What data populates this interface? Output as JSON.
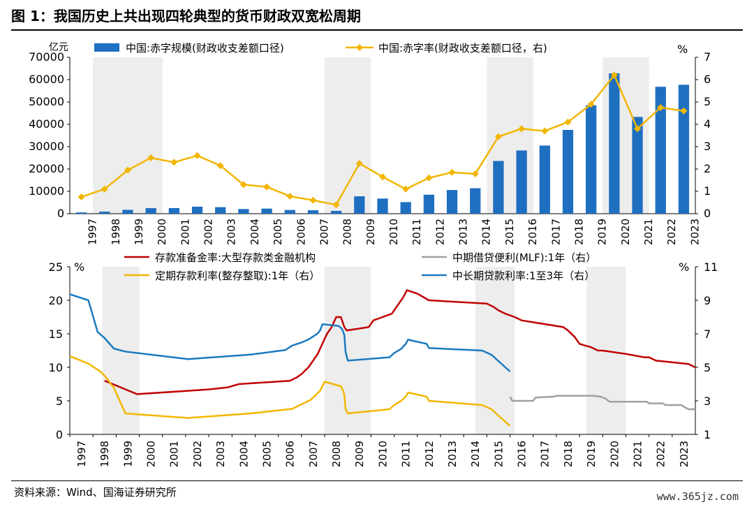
{
  "header": {
    "title": "图 1：我国历史上共出现四轮典型的货币财政双宽松周期"
  },
  "footer": {
    "source": "资料来源：Wind、国海证券研究所",
    "watermark": "www.365jz.com"
  },
  "colors": {
    "bar": "#1f6fc1",
    "deficit_rate": "#f2b600",
    "rrr": "#c00000",
    "mlf": "#a0a0a0",
    "deposit": "#f2b600",
    "loan": "#1a7abf",
    "shade": "#ededed"
  },
  "chart_data": [
    {
      "type": "bar",
      "title": "",
      "ylabel_left": "亿元",
      "ylabel_right": "%",
      "ylim": [
        0,
        70000
      ],
      "ylim_right": [
        0,
        7
      ],
      "yticks_left": [
        "0",
        "10000",
        "20000",
        "30000",
        "40000",
        "50000",
        "60000",
        "70000"
      ],
      "yticks_right": [
        "0",
        "1",
        "2",
        "3",
        "4",
        "5",
        "6",
        "7"
      ],
      "categories": [
        "1997",
        "1998",
        "1999",
        "2000",
        "2001",
        "2002",
        "2003",
        "2004",
        "2005",
        "2006",
        "2007",
        "2008",
        "2009",
        "2010",
        "2011",
        "2012",
        "2013",
        "2014",
        "2015",
        "2016",
        "2017",
        "2018",
        "2019",
        "2020",
        "2021",
        "2022",
        "2023"
      ],
      "shaded_years": [
        [
          "1998",
          "2000"
        ],
        [
          "2008",
          "2009"
        ],
        [
          "2015",
          "2016"
        ],
        [
          "2020",
          "2021"
        ]
      ],
      "series": [
        {
          "name": "中国:赤字规模(财政收支差额口径)",
          "kind": "bar",
          "axis": "left",
          "values": [
            580,
            920,
            1740,
            2490,
            2520,
            3150,
            2930,
            2090,
            2280,
            1660,
            1540,
            1260,
            7780,
            6770,
            5190,
            8500,
            10600,
            11400,
            23600,
            28300,
            30500,
            37500,
            48500,
            62800,
            43300,
            56800,
            57700
          ]
        },
        {
          "name": "中国:赤字率(财政收支差额口径，右)",
          "kind": "line",
          "axis": "right",
          "values": [
            0.75,
            1.1,
            1.95,
            2.5,
            2.3,
            2.6,
            2.15,
            1.3,
            1.2,
            0.78,
            0.6,
            0.4,
            2.25,
            1.65,
            1.1,
            1.6,
            1.85,
            1.78,
            3.45,
            3.8,
            3.7,
            4.1,
            4.9,
            6.2,
            3.8,
            4.75,
            4.6
          ]
        }
      ],
      "legend_placement": "top"
    },
    {
      "type": "line",
      "title": "",
      "ylabel_left": "%",
      "ylabel_right": "%",
      "ylim": [
        0,
        25
      ],
      "ylim_right": [
        1,
        11
      ],
      "yticks_left": [
        "0",
        "5",
        "10",
        "15",
        "20",
        "25"
      ],
      "yticks_right": [
        "1",
        "3",
        "5",
        "7",
        "9",
        "11"
      ],
      "x_range": [
        1997.0,
        2024.0
      ],
      "x_ticks": [
        "1997",
        "1998",
        "1999",
        "2000",
        "2001",
        "2002",
        "2003",
        "2004",
        "2005",
        "2006",
        "2007",
        "2008",
        "2009",
        "2010",
        "2011",
        "2012",
        "2013",
        "2014",
        "2015",
        "2016",
        "2017",
        "2018",
        "2019",
        "2020",
        "2021",
        "2022",
        "2023"
      ],
      "shaded_ranges": [
        [
          1998.4,
          2000.0
        ],
        [
          2008.0,
          2010.0
        ],
        [
          2014.5,
          2016.2
        ],
        [
          2019.3,
          2021.0
        ]
      ],
      "series": [
        {
          "name": "存款准备金率:大型存款类金融机构",
          "axis": "left",
          "points": [
            [
              1998.5,
              8
            ],
            [
              1999.9,
              6
            ],
            [
              2003.0,
              6.7
            ],
            [
              2003.8,
              7
            ],
            [
              2004.3,
              7.5
            ],
            [
              2006.5,
              8
            ],
            [
              2006.8,
              8.5
            ],
            [
              2007.0,
              9
            ],
            [
              2007.3,
              10
            ],
            [
              2007.5,
              11
            ],
            [
              2007.7,
              12
            ],
            [
              2007.9,
              13.5
            ],
            [
              2008.1,
              15
            ],
            [
              2008.3,
              16
            ],
            [
              2008.5,
              17.5
            ],
            [
              2008.7,
              17.5
            ],
            [
              2008.85,
              16
            ],
            [
              2008.95,
              15.5
            ],
            [
              2009.9,
              16
            ],
            [
              2010.1,
              17
            ],
            [
              2010.5,
              17.5
            ],
            [
              2010.9,
              18
            ],
            [
              2011.2,
              19.5
            ],
            [
              2011.4,
              20.5
            ],
            [
              2011.55,
              21.5
            ],
            [
              2012.0,
              21
            ],
            [
              2012.5,
              20
            ],
            [
              2015.0,
              19.5
            ],
            [
              2015.3,
              19
            ],
            [
              2015.5,
              18.5
            ],
            [
              2015.8,
              18
            ],
            [
              2016.2,
              17.5
            ],
            [
              2016.5,
              17
            ],
            [
              2018.3,
              16
            ],
            [
              2018.5,
              15.5
            ],
            [
              2018.8,
              14.5
            ],
            [
              2019.0,
              13.5
            ],
            [
              2019.5,
              13
            ],
            [
              2019.8,
              12.5
            ],
            [
              2020.0,
              12.5
            ],
            [
              2021.0,
              12
            ],
            [
              2021.8,
              11.5
            ],
            [
              2022.0,
              11.5
            ],
            [
              2022.3,
              11
            ],
            [
              2023.0,
              10.75
            ],
            [
              2023.7,
              10.5
            ],
            [
              2024.0,
              10
            ]
          ]
        },
        {
          "name": "中期借贷便利(MLF):1年（右）",
          "axis": "right",
          "points": [
            [
              2016.0,
              3.25
            ],
            [
              2016.1,
              3.0
            ],
            [
              2017.0,
              3.0
            ],
            [
              2017.1,
              3.2
            ],
            [
              2017.9,
              3.25
            ],
            [
              2018.0,
              3.3
            ],
            [
              2019.6,
              3.3
            ],
            [
              2019.9,
              3.25
            ],
            [
              2020.1,
              3.15
            ],
            [
              2020.3,
              2.95
            ],
            [
              2021.0,
              2.95
            ],
            [
              2021.9,
              2.95
            ],
            [
              2022.0,
              2.85
            ],
            [
              2022.6,
              2.85
            ],
            [
              2022.7,
              2.75
            ],
            [
              2023.4,
              2.75
            ],
            [
              2023.5,
              2.65
            ],
            [
              2023.7,
              2.5
            ],
            [
              2024.0,
              2.5
            ]
          ]
        },
        {
          "name": "定期存款利率(整存整取):1年（右）",
          "axis": "right",
          "points": [
            [
              1997.0,
              5.67
            ],
            [
              1997.8,
              5.22
            ],
            [
              1998.3,
              4.77
            ],
            [
              1998.5,
              4.5
            ],
            [
              1998.9,
              3.78
            ],
            [
              1999.4,
              2.25
            ],
            [
              2002.1,
              1.98
            ],
            [
              2004.8,
              2.25
            ],
            [
              2006.6,
              2.52
            ],
            [
              2007.0,
              2.79
            ],
            [
              2007.4,
              3.06
            ],
            [
              2007.6,
              3.33
            ],
            [
              2007.8,
              3.6
            ],
            [
              2007.9,
              3.87
            ],
            [
              2008.0,
              4.14
            ],
            [
              2008.7,
              3.87
            ],
            [
              2008.8,
              3.6
            ],
            [
              2008.85,
              3.33
            ],
            [
              2008.9,
              2.52
            ],
            [
              2009.0,
              2.25
            ],
            [
              2010.8,
              2.5
            ],
            [
              2011.0,
              2.75
            ],
            [
              2011.3,
              3.0
            ],
            [
              2011.5,
              3.25
            ],
            [
              2011.6,
              3.5
            ],
            [
              2012.4,
              3.25
            ],
            [
              2012.5,
              3.0
            ],
            [
              2014.8,
              2.75
            ],
            [
              2015.2,
              2.5
            ],
            [
              2015.4,
              2.25
            ],
            [
              2015.6,
              2.0
            ],
            [
              2015.8,
              1.75
            ],
            [
              2016.0,
              1.5
            ]
          ]
        },
        {
          "name": "中长期贷款利率:1至3年（右）",
          "axis": "right",
          "points": [
            [
              1997.0,
              9.36
            ],
            [
              1997.8,
              9.0
            ],
            [
              1998.2,
              7.11
            ],
            [
              1998.5,
              6.75
            ],
            [
              1998.9,
              6.12
            ],
            [
              1999.4,
              5.94
            ],
            [
              2002.1,
              5.49
            ],
            [
              2004.8,
              5.76
            ],
            [
              2006.3,
              6.03
            ],
            [
              2006.6,
              6.3
            ],
            [
              2007.0,
              6.48
            ],
            [
              2007.3,
              6.66
            ],
            [
              2007.5,
              6.84
            ],
            [
              2007.7,
              7.02
            ],
            [
              2007.8,
              7.2
            ],
            [
              2007.9,
              7.56
            ],
            [
              2008.0,
              7.56
            ],
            [
              2008.6,
              7.47
            ],
            [
              2008.75,
              7.29
            ],
            [
              2008.85,
              6.93
            ],
            [
              2008.9,
              5.94
            ],
            [
              2009.0,
              5.4
            ],
            [
              2010.8,
              5.6
            ],
            [
              2011.0,
              5.85
            ],
            [
              2011.3,
              6.1
            ],
            [
              2011.5,
              6.4
            ],
            [
              2011.6,
              6.65
            ],
            [
              2012.4,
              6.4
            ],
            [
              2012.5,
              6.15
            ],
            [
              2014.8,
              6.0
            ],
            [
              2015.2,
              5.75
            ],
            [
              2015.4,
              5.5
            ],
            [
              2015.6,
              5.25
            ],
            [
              2015.8,
              5.0
            ],
            [
              2016.0,
              4.75
            ]
          ]
        }
      ],
      "legend_placement": "top"
    }
  ]
}
